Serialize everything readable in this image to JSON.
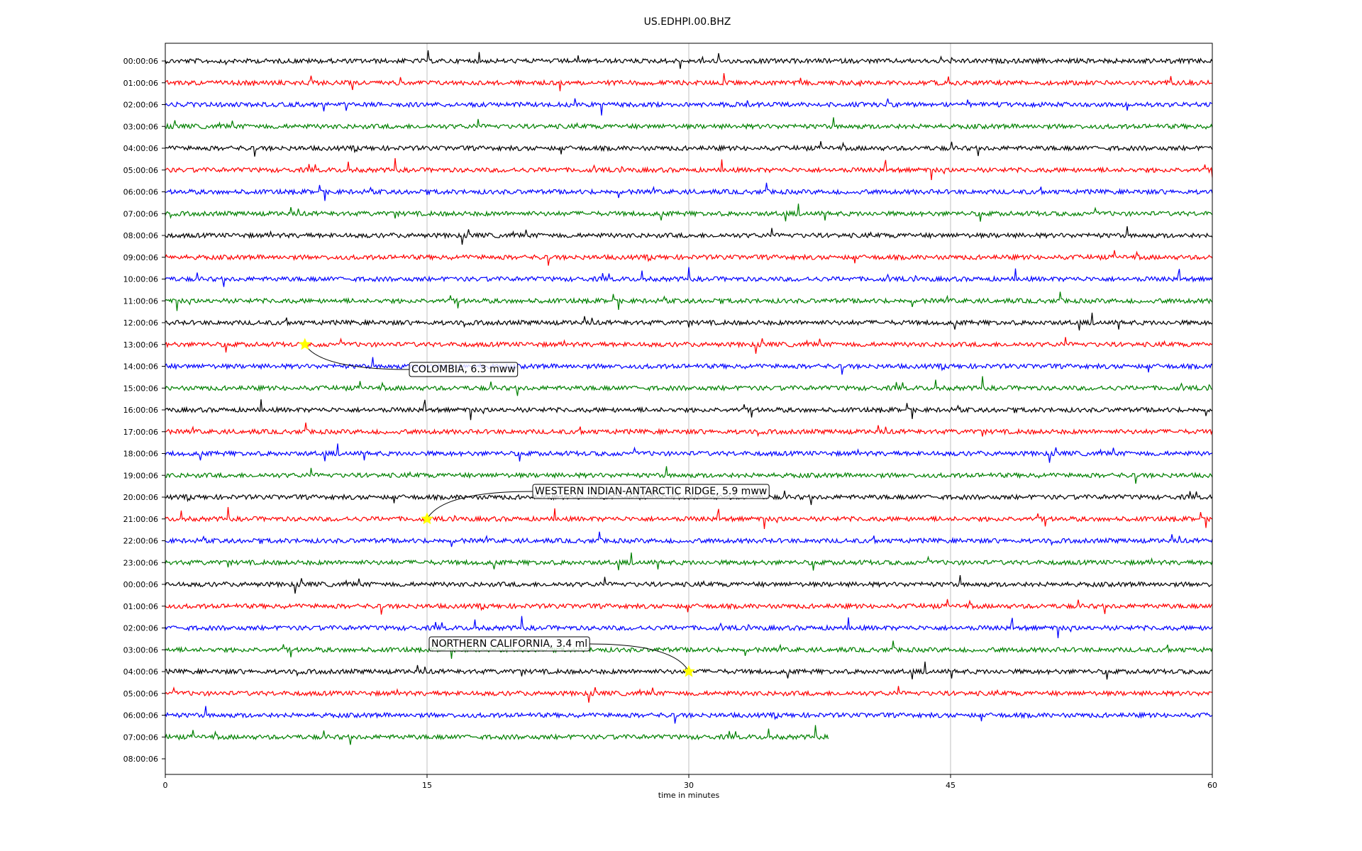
{
  "chart_data": {
    "type": "line",
    "title": "US.EDHPI.00.BHZ",
    "xlabel": "time in minutes",
    "xlim": [
      0,
      60
    ],
    "xticks": [
      "0",
      "15",
      "30",
      "45",
      "60"
    ],
    "xtick_values": [
      0,
      15,
      30,
      45,
      60
    ],
    "grid": "vertical",
    "row_labels": [
      "00:00:06",
      "01:00:06",
      "02:00:06",
      "03:00:06",
      "04:00:06",
      "05:00:06",
      "06:00:06",
      "07:00:06",
      "08:00:06",
      "09:00:06",
      "10:00:06",
      "11:00:06",
      "12:00:06",
      "13:00:06",
      "14:00:06",
      "15:00:06",
      "16:00:06",
      "17:00:06",
      "18:00:06",
      "19:00:06",
      "20:00:06",
      "21:00:06",
      "22:00:06",
      "23:00:06",
      "00:00:06",
      "01:00:06",
      "02:00:06",
      "03:00:06",
      "04:00:06",
      "05:00:06",
      "06:00:06",
      "07:00:06",
      "08:00:06"
    ],
    "trace_colors": [
      "#000000",
      "#ff0000",
      "#0000ff",
      "#008000"
    ],
    "last_trace_end_minute": 38,
    "events": [
      {
        "label": "COLOMBIA, 6.3 mww",
        "row": 13,
        "minute": 8.0
      },
      {
        "label": "WESTERN INDIAN-ANTARCTIC RIDGE, 5.9 mww",
        "row": 21,
        "minute": 15.0
      },
      {
        "label": "NORTHERN CALIFORNIA, 3.4 ml",
        "row": 28,
        "minute": 30.0
      }
    ],
    "event_marker_color": "#ffff00"
  }
}
